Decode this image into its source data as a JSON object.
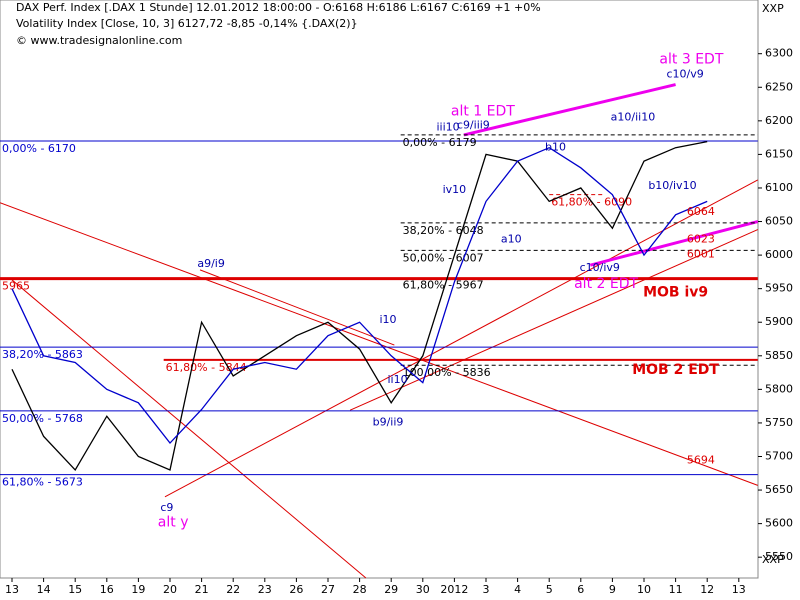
{
  "chart_data": {
    "type": "line",
    "title": "DAX Perf. Index [.DAX  1 Stunde] 12.01.2012 18:00:00 - O:6168 H:6186 L:6167 C:6169 +1 +0%",
    "subtitle": "Volatility Index [Close, 10, 3] 6127,72 -8,85 -0,14% {.DAX(2)}",
    "source": "© www.tradesignalonline.com",
    "axis_label_top": "XXP",
    "axis_label_bottom": "XXP",
    "categories": [
      "13",
      "14",
      "15",
      "16",
      "19",
      "20",
      "21",
      "22",
      "23",
      "26",
      "27",
      "28",
      "29",
      "30",
      "2012",
      "3",
      "4",
      "5",
      "6",
      "9",
      "10",
      "11",
      "12",
      "13"
    ],
    "series": [
      {
        "name": "DAX",
        "color": "#000000",
        "values": [
          5830,
          5730,
          5680,
          5760,
          5700,
          5680,
          5900,
          5820,
          5850,
          5880,
          5900,
          5860,
          5780,
          5850,
          6000,
          6150,
          6140,
          6080,
          6100,
          6040,
          6140,
          6160,
          6169,
          null
        ]
      },
      {
        "name": "Volatility Index",
        "color": "#0000cc",
        "values": [
          5950,
          5850,
          5840,
          5800,
          5780,
          5720,
          5770,
          5830,
          5840,
          5830,
          5880,
          5900,
          5850,
          5810,
          5960,
          6080,
          6140,
          6160,
          6130,
          6090,
          6000,
          6060,
          6080,
          null
        ]
      }
    ],
    "ylim": [
      5519,
      6380
    ],
    "yticks": [
      5550,
      5600,
      5650,
      5700,
      5750,
      5800,
      5850,
      5900,
      5950,
      6000,
      6050,
      6100,
      6150,
      6200,
      6250,
      6300
    ],
    "levels": [
      {
        "value": 6170,
        "label": "0,00% - 6170",
        "color": "#0000cc",
        "x0": 0,
        "x1": 23.6,
        "dash": false,
        "width": 1
      },
      {
        "value": 5863,
        "label": "38,20% - 5863",
        "color": "#0000cc",
        "x0": 0,
        "x1": 23.6,
        "dash": false,
        "width": 1
      },
      {
        "value": 5768,
        "label": "50,00% - 5768",
        "color": "#0000cc",
        "x0": 0,
        "x1": 23.6,
        "dash": false,
        "width": 1
      },
      {
        "value": 5673,
        "label": "61,80% - 5673",
        "color": "#0000cc",
        "x0": 0,
        "x1": 23.6,
        "dash": false,
        "width": 1
      },
      {
        "value": 5965,
        "label": "5965",
        "color": "#dd0000",
        "x0": 0,
        "x1": 23.6,
        "dash": false,
        "width": 3
      },
      {
        "value": 5844,
        "label": "61,80% - 5844",
        "color": "#dd0000",
        "x0": 4.8,
        "x1": 23.6,
        "dash": false,
        "width": 2
      },
      {
        "value": 6179,
        "label": "0,00% - 6179",
        "color": "#000000",
        "x0": 12.3,
        "x1": 23.6,
        "dash": true,
        "width": 1
      },
      {
        "value": 6048,
        "label": "38,20% - 6048",
        "color": "#000000",
        "x0": 12.3,
        "x1": 23.6,
        "dash": true,
        "width": 1
      },
      {
        "value": 6007,
        "label": "50,00% - 6007",
        "color": "#000000",
        "x0": 12.3,
        "x1": 23.6,
        "dash": true,
        "width": 1
      },
      {
        "value": 5967,
        "label": "61,80% - 5967",
        "color": "#000000",
        "x0": 12.3,
        "x1": 12.3,
        "dash": true,
        "width": 1
      },
      {
        "value": 5836,
        "label": "100,00% - 5836",
        "color": "#000000",
        "x0": 12.3,
        "x1": 23.6,
        "dash": true,
        "width": 1
      },
      {
        "value": 6090,
        "label": "61,80% - 6090",
        "color": "#dd0000",
        "x0": 17.0,
        "x1": 18.7,
        "dash": true,
        "width": 1
      }
    ],
    "trendlines": [
      {
        "color": "#dd0000",
        "x0": -0.38,
        "y0": 6078,
        "x1": 23.6,
        "y1": 5657,
        "width": 1
      },
      {
        "color": "#dd0000",
        "x0": 0,
        "y0": 5963,
        "x1": 11.2,
        "y1": 5519,
        "width": 1
      },
      {
        "color": "#dd0000",
        "x0": 5.95,
        "y0": 5978,
        "x1": 12.1,
        "y1": 5866,
        "width": 1
      },
      {
        "color": "#dd0000",
        "x0": 4.84,
        "y0": 5640,
        "x1": 23.6,
        "y1": 6112,
        "width": 1
      },
      {
        "color": "#dd0000",
        "x0": 10.7,
        "y0": 5769,
        "x1": 23.6,
        "y1": 6038,
        "width": 1
      },
      {
        "color": "#ee00ee",
        "x0": 14.3,
        "y0": 6179,
        "x1": 21.0,
        "y1": 6254,
        "width": 3
      },
      {
        "color": "#ee00ee",
        "x0": 18.3,
        "y0": 5985,
        "x1": 23.6,
        "y1": 6050,
        "width": 3
      }
    ],
    "annotations": [
      {
        "text": "alt 3 EDT",
        "x": 21.5,
        "value": 6291,
        "color": "#ee00ee",
        "size": 14,
        "bold": false
      },
      {
        "text": "c10/v9",
        "x": 21.3,
        "value": 6269,
        "color": "#0000aa",
        "size": 11,
        "bold": false
      },
      {
        "text": "alt 1 EDT",
        "x": 14.9,
        "value": 6214,
        "color": "#ee00ee",
        "size": 14,
        "bold": false
      },
      {
        "text": "iii10",
        "x": 13.8,
        "value": 6190,
        "color": "#0000aa",
        "size": 11,
        "bold": false
      },
      {
        "text": "c9/iii9",
        "x": 14.6,
        "value": 6193,
        "color": "#0000aa",
        "size": 11,
        "bold": false
      },
      {
        "text": "a10/ii10",
        "x": 19.65,
        "value": 6205,
        "color": "#0000aa",
        "size": 11,
        "bold": false
      },
      {
        "text": "b10",
        "x": 17.2,
        "value": 6160,
        "color": "#0000aa",
        "size": 11,
        "bold": false
      },
      {
        "text": "iv10",
        "x": 14.0,
        "value": 6097,
        "color": "#0000aa",
        "size": 11,
        "bold": false
      },
      {
        "text": "b10/iv10",
        "x": 20.9,
        "value": 6103,
        "color": "#0000aa",
        "size": 11,
        "bold": false
      },
      {
        "text": "a10",
        "x": 15.8,
        "value": 6023,
        "color": "#0000aa",
        "size": 11,
        "bold": false
      },
      {
        "text": "c10/iv9",
        "x": 18.6,
        "value": 5981,
        "color": "#0000aa",
        "size": 11,
        "bold": false
      },
      {
        "text": "alt 2 EDT",
        "x": 18.8,
        "value": 5957,
        "color": "#ee00ee",
        "size": 14,
        "bold": false
      },
      {
        "text": "MOB iv9",
        "x": 21.0,
        "value": 5944,
        "color": "#dd0000",
        "size": 14,
        "bold": true
      },
      {
        "text": "MOB 2 EDT",
        "x": 21.0,
        "value": 5829,
        "color": "#dd0000",
        "size": 14,
        "bold": true
      },
      {
        "text": "a9/i9",
        "x": 6.3,
        "value": 5987,
        "color": "#0000aa",
        "size": 11,
        "bold": false
      },
      {
        "text": "i10",
        "x": 11.9,
        "value": 5903,
        "color": "#0000aa",
        "size": 11,
        "bold": false
      },
      {
        "text": "ii10",
        "x": 12.2,
        "value": 5814,
        "color": "#0000aa",
        "size": 11,
        "bold": false
      },
      {
        "text": "b9/ii9",
        "x": 11.9,
        "value": 5751,
        "color": "#0000aa",
        "size": 11,
        "bold": false
      },
      {
        "text": "c9",
        "x": 4.9,
        "value": 5623,
        "color": "#0000aa",
        "size": 11,
        "bold": false
      },
      {
        "text": "alt y",
        "x": 5.1,
        "value": 5602,
        "color": "#ee00ee",
        "size": 14,
        "bold": false
      },
      {
        "text": "6064",
        "x": 21.8,
        "value": 6064,
        "color": "#dd0000",
        "size": 11,
        "bold": false
      },
      {
        "text": "6023",
        "x": 21.8,
        "value": 6023,
        "color": "#dd0000",
        "size": 11,
        "bold": false
      },
      {
        "text": "6001",
        "x": 21.8,
        "value": 6001,
        "color": "#dd0000",
        "size": 11,
        "bold": false
      },
      {
        "text": "5694",
        "x": 21.8,
        "value": 5694,
        "color": "#dd0000",
        "size": 11,
        "bold": false
      }
    ]
  }
}
